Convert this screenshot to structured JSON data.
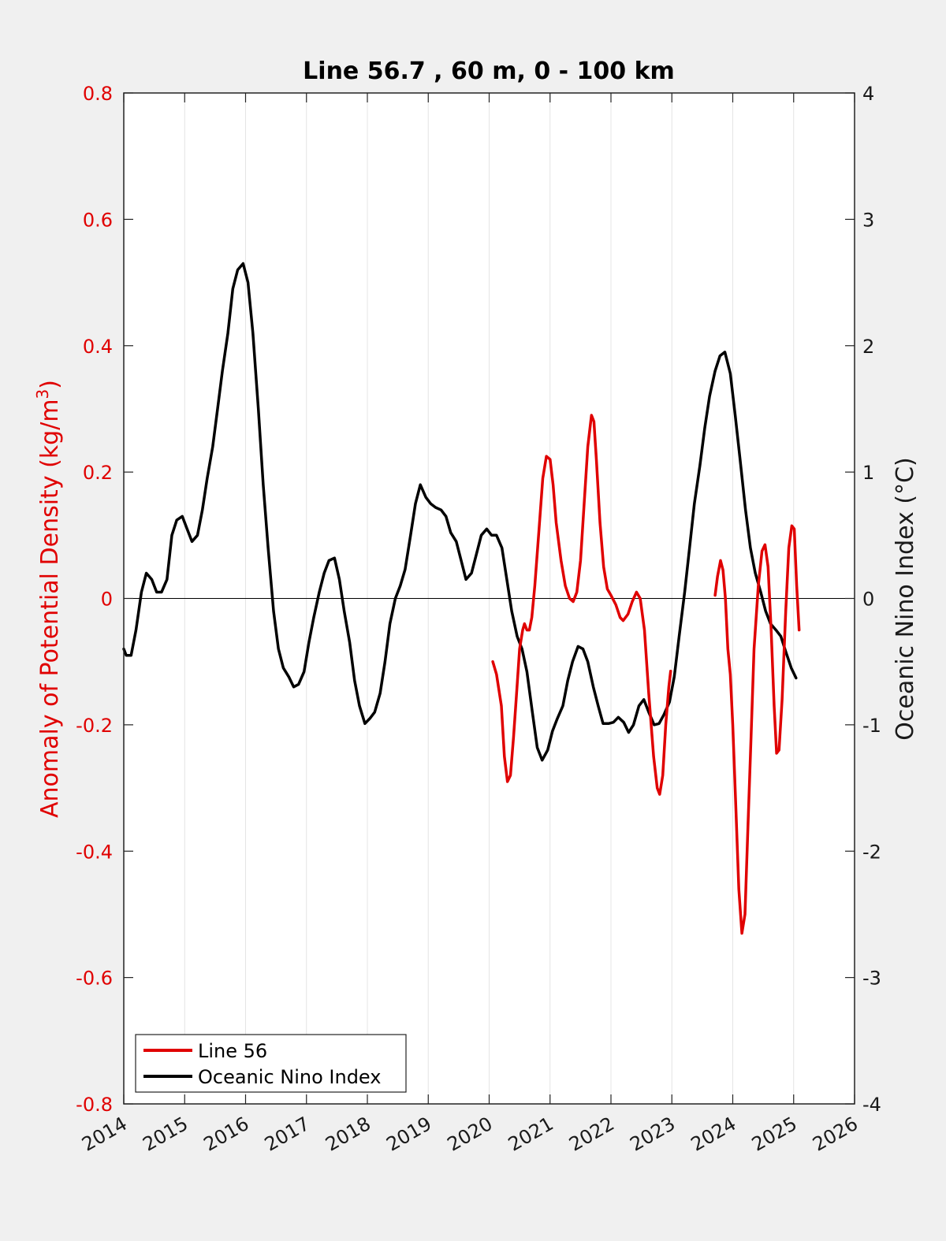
{
  "chart_data": {
    "type": "line",
    "title": "Line 56.7 , 60 m, 0 - 100 km",
    "x_ticks": [
      "2014",
      "2015",
      "2016",
      "2017",
      "2018",
      "2019",
      "2020",
      "2021",
      "2022",
      "2023",
      "2024",
      "2025",
      "2026"
    ],
    "xlim": [
      2014,
      2026
    ],
    "left_axis": {
      "label_main": "Anomaly of Potential Density (kg/m",
      "label_sup": "3",
      "label_end": ")",
      "ylim": [
        -0.8,
        0.8
      ],
      "ticks": [
        "-0.8",
        "-0.6",
        "-0.4",
        "-0.2",
        "0",
        "0.2",
        "0.4",
        "0.6",
        "0.8"
      ],
      "color": "#e00000"
    },
    "right_axis": {
      "label": "Oceanic Nino Index (°C)",
      "ylim": [
        -4,
        4
      ],
      "ticks": [
        "-4",
        "-3",
        "-2",
        "-1",
        "0",
        "1",
        "2",
        "3",
        "4"
      ],
      "color": "#1a1a1a"
    },
    "grid": "vertical",
    "zero_line": true,
    "legend_position": "bottom-left",
    "series": [
      {
        "name": "Line 56",
        "axis": "left",
        "color": "#e00000",
        "segments": [
          [
            [
              2020.06,
              -0.1
            ],
            [
              2020.12,
              -0.12
            ],
            [
              2020.2,
              -0.17
            ],
            [
              2020.25,
              -0.25
            ],
            [
              2020.3,
              -0.29
            ],
            [
              2020.35,
              -0.28
            ],
            [
              2020.4,
              -0.22
            ],
            [
              2020.45,
              -0.15
            ],
            [
              2020.5,
              -0.08
            ],
            [
              2020.55,
              -0.05
            ],
            [
              2020.58,
              -0.04
            ],
            [
              2020.62,
              -0.05
            ],
            [
              2020.66,
              -0.05
            ],
            [
              2020.7,
              -0.03
            ],
            [
              2020.75,
              0.02
            ],
            [
              2020.82,
              0.11
            ],
            [
              2020.88,
              0.19
            ],
            [
              2020.94,
              0.225
            ],
            [
              2021.0,
              0.22
            ],
            [
              2021.05,
              0.18
            ],
            [
              2021.1,
              0.12
            ],
            [
              2021.18,
              0.06
            ],
            [
              2021.25,
              0.02
            ],
            [
              2021.32,
              0.0
            ],
            [
              2021.38,
              -0.005
            ],
            [
              2021.44,
              0.01
            ],
            [
              2021.5,
              0.06
            ],
            [
              2021.56,
              0.15
            ],
            [
              2021.62,
              0.24
            ],
            [
              2021.68,
              0.29
            ],
            [
              2021.72,
              0.28
            ],
            [
              2021.76,
              0.22
            ],
            [
              2021.82,
              0.12
            ],
            [
              2021.88,
              0.05
            ],
            [
              2021.94,
              0.015
            ],
            [
              2022.0,
              0.005
            ],
            [
              2022.08,
              -0.01
            ],
            [
              2022.15,
              -0.03
            ],
            [
              2022.2,
              -0.035
            ],
            [
              2022.28,
              -0.025
            ],
            [
              2022.35,
              -0.005
            ],
            [
              2022.42,
              0.01
            ],
            [
              2022.48,
              0.0
            ],
            [
              2022.55,
              -0.05
            ],
            [
              2022.62,
              -0.15
            ],
            [
              2022.7,
              -0.25
            ],
            [
              2022.76,
              -0.3
            ],
            [
              2022.8,
              -0.31
            ],
            [
              2022.85,
              -0.28
            ],
            [
              2022.9,
              -0.2
            ],
            [
              2022.95,
              -0.14
            ],
            [
              2022.98,
              -0.115
            ]
          ],
          [
            [
              2023.71,
              0.005
            ],
            [
              2023.75,
              0.035
            ],
            [
              2023.8,
              0.06
            ],
            [
              2023.84,
              0.045
            ],
            [
              2023.88,
              0.0
            ],
            [
              2023.92,
              -0.08
            ],
            [
              2023.96,
              -0.12
            ],
            [
              2024.0,
              -0.2
            ],
            [
              2024.05,
              -0.33
            ],
            [
              2024.1,
              -0.46
            ],
            [
              2024.15,
              -0.53
            ],
            [
              2024.2,
              -0.5
            ],
            [
              2024.25,
              -0.36
            ],
            [
              2024.3,
              -0.22
            ],
            [
              2024.35,
              -0.08
            ],
            [
              2024.42,
              0.02
            ],
            [
              2024.48,
              0.075
            ],
            [
              2024.53,
              0.085
            ],
            [
              2024.58,
              0.05
            ],
            [
              2024.63,
              -0.05
            ],
            [
              2024.68,
              -0.17
            ],
            [
              2024.72,
              -0.245
            ],
            [
              2024.76,
              -0.24
            ],
            [
              2024.81,
              -0.16
            ],
            [
              2024.87,
              -0.02
            ],
            [
              2024.92,
              0.08
            ],
            [
              2024.97,
              0.115
            ],
            [
              2025.01,
              0.11
            ],
            [
              2025.05,
              0.02
            ],
            [
              2025.09,
              -0.05
            ]
          ]
        ]
      },
      {
        "name": "Oceanic Nino Index",
        "axis": "right",
        "color": "#000000",
        "segments": [
          [
            [
              2014.0,
              -0.4
            ],
            [
              2014.04,
              -0.45
            ],
            [
              2014.12,
              -0.45
            ],
            [
              2014.2,
              -0.25
            ],
            [
              2014.29,
              0.05
            ],
            [
              2014.37,
              0.2
            ],
            [
              2014.46,
              0.15
            ],
            [
              2014.54,
              0.05
            ],
            [
              2014.62,
              0.05
            ],
            [
              2014.71,
              0.15
            ],
            [
              2014.79,
              0.5
            ],
            [
              2014.87,
              0.62
            ],
            [
              2014.96,
              0.65
            ],
            [
              2015.04,
              0.55
            ],
            [
              2015.12,
              0.45
            ],
            [
              2015.21,
              0.5
            ],
            [
              2015.29,
              0.7
            ],
            [
              2015.37,
              0.95
            ],
            [
              2015.46,
              1.2
            ],
            [
              2015.54,
              1.5
            ],
            [
              2015.62,
              1.8
            ],
            [
              2015.71,
              2.1
            ],
            [
              2015.79,
              2.45
            ],
            [
              2015.87,
              2.6
            ],
            [
              2015.96,
              2.65
            ],
            [
              2016.04,
              2.5
            ],
            [
              2016.12,
              2.1
            ],
            [
              2016.21,
              1.5
            ],
            [
              2016.29,
              0.9
            ],
            [
              2016.37,
              0.4
            ],
            [
              2016.46,
              -0.1
            ],
            [
              2016.54,
              -0.4
            ],
            [
              2016.62,
              -0.55
            ],
            [
              2016.71,
              -0.62
            ],
            [
              2016.79,
              -0.7
            ],
            [
              2016.87,
              -0.68
            ],
            [
              2016.96,
              -0.58
            ],
            [
              2017.04,
              -0.35
            ],
            [
              2017.12,
              -0.15
            ],
            [
              2017.21,
              0.05
            ],
            [
              2017.29,
              0.2
            ],
            [
              2017.37,
              0.3
            ],
            [
              2017.46,
              0.32
            ],
            [
              2017.54,
              0.15
            ],
            [
              2017.62,
              -0.1
            ],
            [
              2017.71,
              -0.35
            ],
            [
              2017.79,
              -0.65
            ],
            [
              2017.87,
              -0.85
            ],
            [
              2017.96,
              -0.99
            ],
            [
              2018.04,
              -0.95
            ],
            [
              2018.12,
              -0.9
            ],
            [
              2018.21,
              -0.75
            ],
            [
              2018.29,
              -0.5
            ],
            [
              2018.37,
              -0.2
            ],
            [
              2018.46,
              0.0
            ],
            [
              2018.54,
              0.1
            ],
            [
              2018.62,
              0.23
            ],
            [
              2018.71,
              0.5
            ],
            [
              2018.79,
              0.75
            ],
            [
              2018.87,
              0.9
            ],
            [
              2018.96,
              0.8
            ],
            [
              2019.04,
              0.75
            ],
            [
              2019.12,
              0.72
            ],
            [
              2019.21,
              0.7
            ],
            [
              2019.29,
              0.65
            ],
            [
              2019.37,
              0.52
            ],
            [
              2019.46,
              0.45
            ],
            [
              2019.54,
              0.3
            ],
            [
              2019.62,
              0.15
            ],
            [
              2019.71,
              0.2
            ],
            [
              2019.79,
              0.35
            ],
            [
              2019.87,
              0.5
            ],
            [
              2019.96,
              0.55
            ],
            [
              2020.04,
              0.5
            ],
            [
              2020.12,
              0.5
            ],
            [
              2020.21,
              0.4
            ],
            [
              2020.29,
              0.15
            ],
            [
              2020.37,
              -0.1
            ],
            [
              2020.46,
              -0.3
            ],
            [
              2020.54,
              -0.4
            ],
            [
              2020.62,
              -0.58
            ],
            [
              2020.71,
              -0.9
            ],
            [
              2020.79,
              -1.18
            ],
            [
              2020.87,
              -1.28
            ],
            [
              2020.96,
              -1.2
            ],
            [
              2021.04,
              -1.05
            ],
            [
              2021.12,
              -0.95
            ],
            [
              2021.21,
              -0.85
            ],
            [
              2021.29,
              -0.65
            ],
            [
              2021.37,
              -0.5
            ],
            [
              2021.46,
              -0.38
            ],
            [
              2021.54,
              -0.4
            ],
            [
              2021.62,
              -0.5
            ],
            [
              2021.71,
              -0.7
            ],
            [
              2021.79,
              -0.85
            ],
            [
              2021.87,
              -0.99
            ],
            [
              2021.96,
              -0.99
            ],
            [
              2022.04,
              -0.98
            ],
            [
              2022.12,
              -0.94
            ],
            [
              2022.21,
              -0.98
            ],
            [
              2022.29,
              -1.06
            ],
            [
              2022.37,
              -1.0
            ],
            [
              2022.46,
              -0.85
            ],
            [
              2022.54,
              -0.8
            ],
            [
              2022.62,
              -0.9
            ],
            [
              2022.71,
              -1.0
            ],
            [
              2022.79,
              -0.99
            ],
            [
              2022.87,
              -0.92
            ],
            [
              2022.96,
              -0.82
            ],
            [
              2023.04,
              -0.62
            ],
            [
              2023.12,
              -0.3
            ],
            [
              2023.21,
              0.05
            ],
            [
              2023.29,
              0.4
            ],
            [
              2023.37,
              0.75
            ],
            [
              2023.46,
              1.05
            ],
            [
              2023.54,
              1.35
            ],
            [
              2023.62,
              1.6
            ],
            [
              2023.71,
              1.8
            ],
            [
              2023.79,
              1.92
            ],
            [
              2023.87,
              1.95
            ],
            [
              2023.96,
              1.78
            ],
            [
              2024.04,
              1.45
            ],
            [
              2024.12,
              1.1
            ],
            [
              2024.21,
              0.7
            ],
            [
              2024.29,
              0.4
            ],
            [
              2024.37,
              0.2
            ],
            [
              2024.46,
              0.05
            ],
            [
              2024.54,
              -0.1
            ],
            [
              2024.62,
              -0.2
            ],
            [
              2024.71,
              -0.25
            ],
            [
              2024.79,
              -0.3
            ],
            [
              2024.87,
              -0.42
            ],
            [
              2024.96,
              -0.55
            ],
            [
              2025.04,
              -0.63
            ]
          ]
        ]
      }
    ]
  }
}
